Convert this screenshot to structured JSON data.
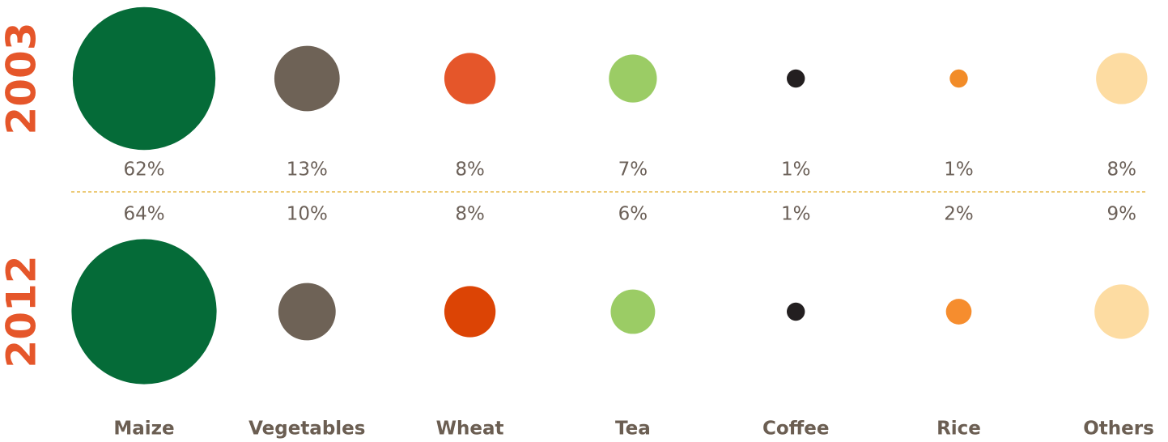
{
  "chart_data": {
    "type": "bubble",
    "categories": [
      "Maize",
      "Vegetables",
      "Wheat",
      "Tea",
      "Coffee",
      "Rice",
      "Others"
    ],
    "series": [
      {
        "name": "2003",
        "values": [
          62,
          13,
          8,
          7,
          1,
          1,
          8
        ],
        "value_labels": [
          "62%",
          "13%",
          "8%",
          "7%",
          "1%",
          "1%",
          "8%"
        ],
        "colors": [
          "#056b38",
          "#6e6256",
          "#e5562a",
          "#9bcc65",
          "#231f20",
          "#f28c28",
          "#fddca2"
        ]
      },
      {
        "name": "2012",
        "values": [
          64,
          10,
          8,
          6,
          1,
          2,
          9
        ],
        "value_labels": [
          "64%",
          "10%",
          "8%",
          "6%",
          "1%",
          "2%",
          "9%"
        ],
        "colors": [
          "#056b38",
          "#6e6256",
          "#dc4405",
          "#9bcc65",
          "#231f20",
          "#f68d2e",
          "#fddca2"
        ]
      }
    ]
  }
}
